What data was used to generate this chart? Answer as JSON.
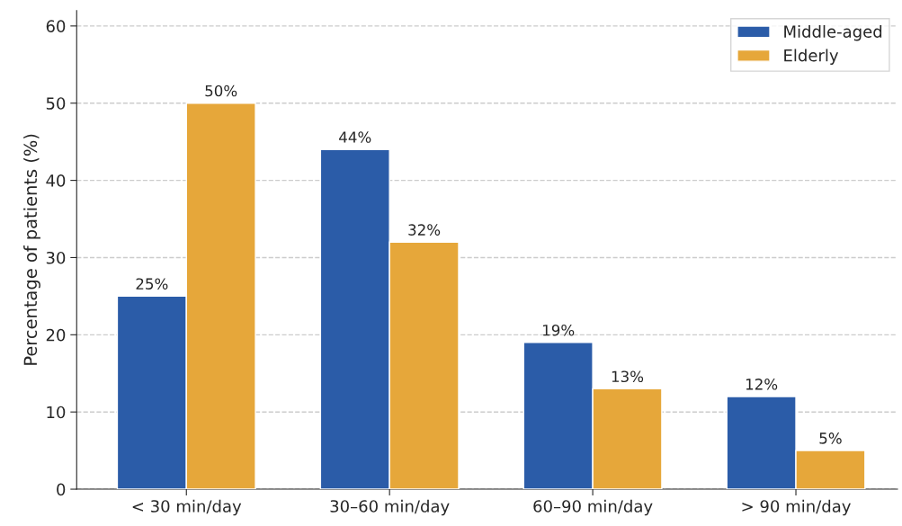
{
  "chart_data": {
    "type": "bar",
    "ylabel": "Percentage of patients (%)",
    "categories": [
      "< 30 min/day",
      "30–60 min/day",
      "60–90 min/day",
      "> 90 min/day"
    ],
    "series": [
      {
        "name": "Middle-aged",
        "color": "#2b5ca8",
        "values": [
          25,
          44,
          19,
          12
        ],
        "value_labels": [
          "25%",
          "44%",
          "19%",
          "12%"
        ]
      },
      {
        "name": "Elderly",
        "color": "#e6a73a",
        "values": [
          50,
          32,
          13,
          5
        ],
        "value_labels": [
          "50%",
          "32%",
          "13%",
          "5%"
        ]
      }
    ],
    "ylim": [
      0,
      62
    ],
    "yticks": [
      0,
      10,
      20,
      30,
      40,
      50,
      60
    ],
    "grid": "y",
    "legend": "top right"
  }
}
